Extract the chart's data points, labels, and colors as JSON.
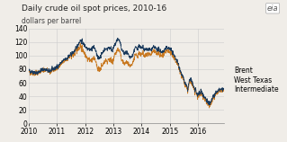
{
  "title": "Daily crude oil spot prices, 2010-16",
  "subtitle": "dollars per barrel",
  "brent_color": "#1a3a5c",
  "wti_color": "#c87820",
  "background_color": "#f0ede8",
  "grid_color": "#cccccc",
  "ylim": [
    0,
    140
  ],
  "yticks": [
    0,
    20,
    40,
    60,
    80,
    100,
    120,
    140
  ],
  "xlim_start": 2010.0,
  "xlim_end": 2016.92,
  "xticks": [
    2010,
    2011,
    2012,
    2013,
    2014,
    2015,
    2016
  ],
  "legend_labels": [
    "Brent",
    "West Texas\nIntermediate"
  ],
  "title_fontsize": 6.5,
  "subtitle_fontsize": 5.5,
  "tick_fontsize": 5.5,
  "legend_fontsize": 5.5,
  "brent_waypoints": [
    [
      0.0,
      78
    ],
    [
      0.02,
      76
    ],
    [
      0.04,
      74
    ],
    [
      0.06,
      78
    ],
    [
      0.08,
      80
    ],
    [
      0.1,
      77
    ],
    [
      0.12,
      79
    ],
    [
      0.14,
      82
    ],
    [
      0.16,
      88
    ],
    [
      0.175,
      92
    ],
    [
      0.19,
      95
    ],
    [
      0.21,
      100
    ],
    [
      0.23,
      105
    ],
    [
      0.245,
      112
    ],
    [
      0.255,
      118
    ],
    [
      0.265,
      122
    ],
    [
      0.275,
      120
    ],
    [
      0.285,
      115
    ],
    [
      0.295,
      112
    ],
    [
      0.31,
      110
    ],
    [
      0.32,
      108
    ],
    [
      0.33,
      113
    ],
    [
      0.34,
      110
    ],
    [
      0.355,
      95
    ],
    [
      0.37,
      100
    ],
    [
      0.385,
      108
    ],
    [
      0.4,
      110
    ],
    [
      0.415,
      112
    ],
    [
      0.43,
      108
    ],
    [
      0.445,
      118
    ],
    [
      0.455,
      125
    ],
    [
      0.465,
      122
    ],
    [
      0.475,
      110
    ],
    [
      0.49,
      102
    ],
    [
      0.5,
      105
    ],
    [
      0.51,
      100
    ],
    [
      0.52,
      96
    ],
    [
      0.53,
      99
    ],
    [
      0.545,
      112
    ],
    [
      0.555,
      110
    ],
    [
      0.565,
      115
    ],
    [
      0.575,
      110
    ],
    [
      0.585,
      112
    ],
    [
      0.595,
      108
    ],
    [
      0.61,
      110
    ],
    [
      0.625,
      108
    ],
    [
      0.64,
      112
    ],
    [
      0.655,
      110
    ],
    [
      0.67,
      108
    ],
    [
      0.685,
      105
    ],
    [
      0.7,
      110
    ],
    [
      0.715,
      112
    ],
    [
      0.73,
      108
    ],
    [
      0.745,
      100
    ],
    [
      0.76,
      92
    ],
    [
      0.77,
      85
    ],
    [
      0.78,
      75
    ],
    [
      0.79,
      68
    ],
    [
      0.8,
      60
    ],
    [
      0.808,
      55
    ],
    [
      0.815,
      50
    ],
    [
      0.822,
      62
    ],
    [
      0.828,
      65
    ],
    [
      0.835,
      62
    ],
    [
      0.84,
      58
    ],
    [
      0.848,
      52
    ],
    [
      0.855,
      48
    ],
    [
      0.86,
      44
    ],
    [
      0.868,
      42
    ],
    [
      0.875,
      45
    ],
    [
      0.882,
      48
    ],
    [
      0.89,
      44
    ],
    [
      0.898,
      40
    ],
    [
      0.905,
      38
    ],
    [
      0.913,
      34
    ],
    [
      0.92,
      30
    ],
    [
      0.928,
      28
    ],
    [
      0.933,
      32
    ],
    [
      0.94,
      36
    ],
    [
      0.948,
      40
    ],
    [
      0.955,
      44
    ],
    [
      0.963,
      46
    ],
    [
      0.97,
      48
    ],
    [
      0.978,
      50
    ],
    [
      0.985,
      50
    ],
    [
      0.992,
      50
    ],
    [
      1.0,
      50
    ]
  ],
  "spread_waypoints": [
    [
      0.0,
      1
    ],
    [
      0.1,
      1
    ],
    [
      0.2,
      2
    ],
    [
      0.25,
      5
    ],
    [
      0.28,
      12
    ],
    [
      0.32,
      16
    ],
    [
      0.4,
      18
    ],
    [
      0.5,
      14
    ],
    [
      0.57,
      10
    ],
    [
      0.65,
      6
    ],
    [
      0.73,
      4
    ],
    [
      0.78,
      3
    ],
    [
      0.83,
      2
    ],
    [
      0.9,
      2
    ],
    [
      1.0,
      2
    ]
  ]
}
